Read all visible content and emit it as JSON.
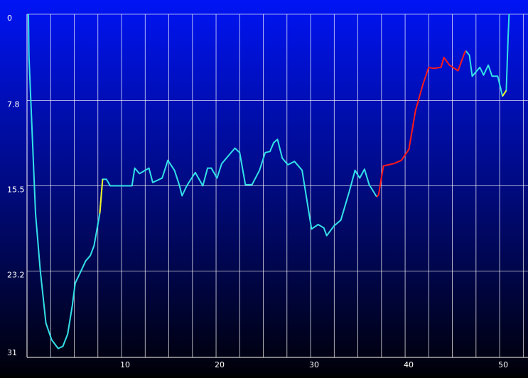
{
  "chart_data": {
    "type": "line",
    "xlim": [
      0,
      53
    ],
    "ylim": [
      0,
      31
    ],
    "y_inverted": true,
    "xticks": [
      10,
      20,
      30,
      40,
      50
    ],
    "xgrid": [
      2.5,
      5,
      7.5,
      10,
      12.5,
      15,
      17.5,
      20,
      22.5,
      25,
      27.5,
      30,
      32.5,
      35,
      37.5,
      40,
      42.5,
      45,
      47.5,
      50,
      52.5
    ],
    "yticks": [
      0,
      7.8,
      15.5,
      23.2,
      31
    ],
    "grid": true,
    "series": [
      {
        "color": "#33e0e8",
        "x": [
          0.15,
          0.2,
          0.9,
          1.4,
          2.0,
          2.6,
          3.3,
          3.8,
          4.3,
          4.8,
          5.1,
          5.6,
          6.2,
          6.7,
          7.1,
          7.7,
          8.0,
          8.4,
          8.8,
          9.5,
          10.3,
          11.1,
          11.4,
          11.9,
          12.9,
          13.3,
          14.3,
          14.9,
          15.6,
          16.1,
          16.4,
          16.9,
          17.8,
          18.6,
          19.1,
          19.5,
          20.1,
          20.6,
          21.3,
          22.0,
          22.5,
          23.1,
          23.8,
          24.6,
          25.2,
          25.7,
          26.1,
          26.5,
          27.0,
          27.6,
          28.3,
          29.1,
          30.1,
          30.8,
          31.4,
          31.7,
          32.5,
          33.2,
          34.1,
          34.7,
          35.2,
          35.7,
          36.2,
          37.0,
          41.0,
          46.4,
          46.8,
          47.1,
          47.9,
          48.3,
          48.8,
          49.2,
          49.8,
          50.3,
          50.7,
          50.9,
          51.0
        ],
        "values": [
          0,
          3.7,
          18,
          23.1,
          27.9,
          29.4,
          30.2,
          30.0,
          28.9,
          26.3,
          24.3,
          23.4,
          22.3,
          21.8,
          20.9,
          18.0,
          14.9,
          14.9,
          15.5,
          15.5,
          15.5,
          15.5,
          13.9,
          14.4,
          13.9,
          15.2,
          14.8,
          13.2,
          14.1,
          15.4,
          16.4,
          15.5,
          14.3,
          15.5,
          13.9,
          13.9,
          14.8,
          13.5,
          12.8,
          12.1,
          12.5,
          15.4,
          15.4,
          14.1,
          12.5,
          12.4,
          11.6,
          11.3,
          13.0,
          13.6,
          13.3,
          14.1,
          19.4,
          19.0,
          19.3,
          20.0,
          19.1,
          18.6,
          16.0,
          14.1,
          14.8,
          14.0,
          15.4,
          16.5,
          null,
          3.3,
          3.7,
          5.6,
          4.8,
          5.5,
          4.6,
          5.6,
          5.6,
          7.4,
          6.9,
          1.9,
          0
        ]
      },
      {
        "color": "#ff1a1a",
        "x": [
          37.0,
          37.2,
          37.7,
          38.8,
          39.6,
          40.4,
          41.1,
          41.9,
          42.5,
          43.0,
          43.8,
          44.1,
          44.7,
          45.6,
          46.2,
          46.4
        ],
        "values": [
          16.5,
          16.3,
          13.7,
          13.5,
          13.2,
          12.2,
          8.7,
          6.3,
          4.8,
          4.9,
          4.8,
          3.9,
          4.6,
          5.1,
          3.7,
          3.3
        ]
      },
      {
        "color": "#f0f020",
        "x": [
          7.7,
          8.0,
          9.0,
          50.3,
          50.7
        ],
        "values": [
          18.0,
          14.9,
          null,
          7.4,
          6.9
        ]
      }
    ]
  }
}
